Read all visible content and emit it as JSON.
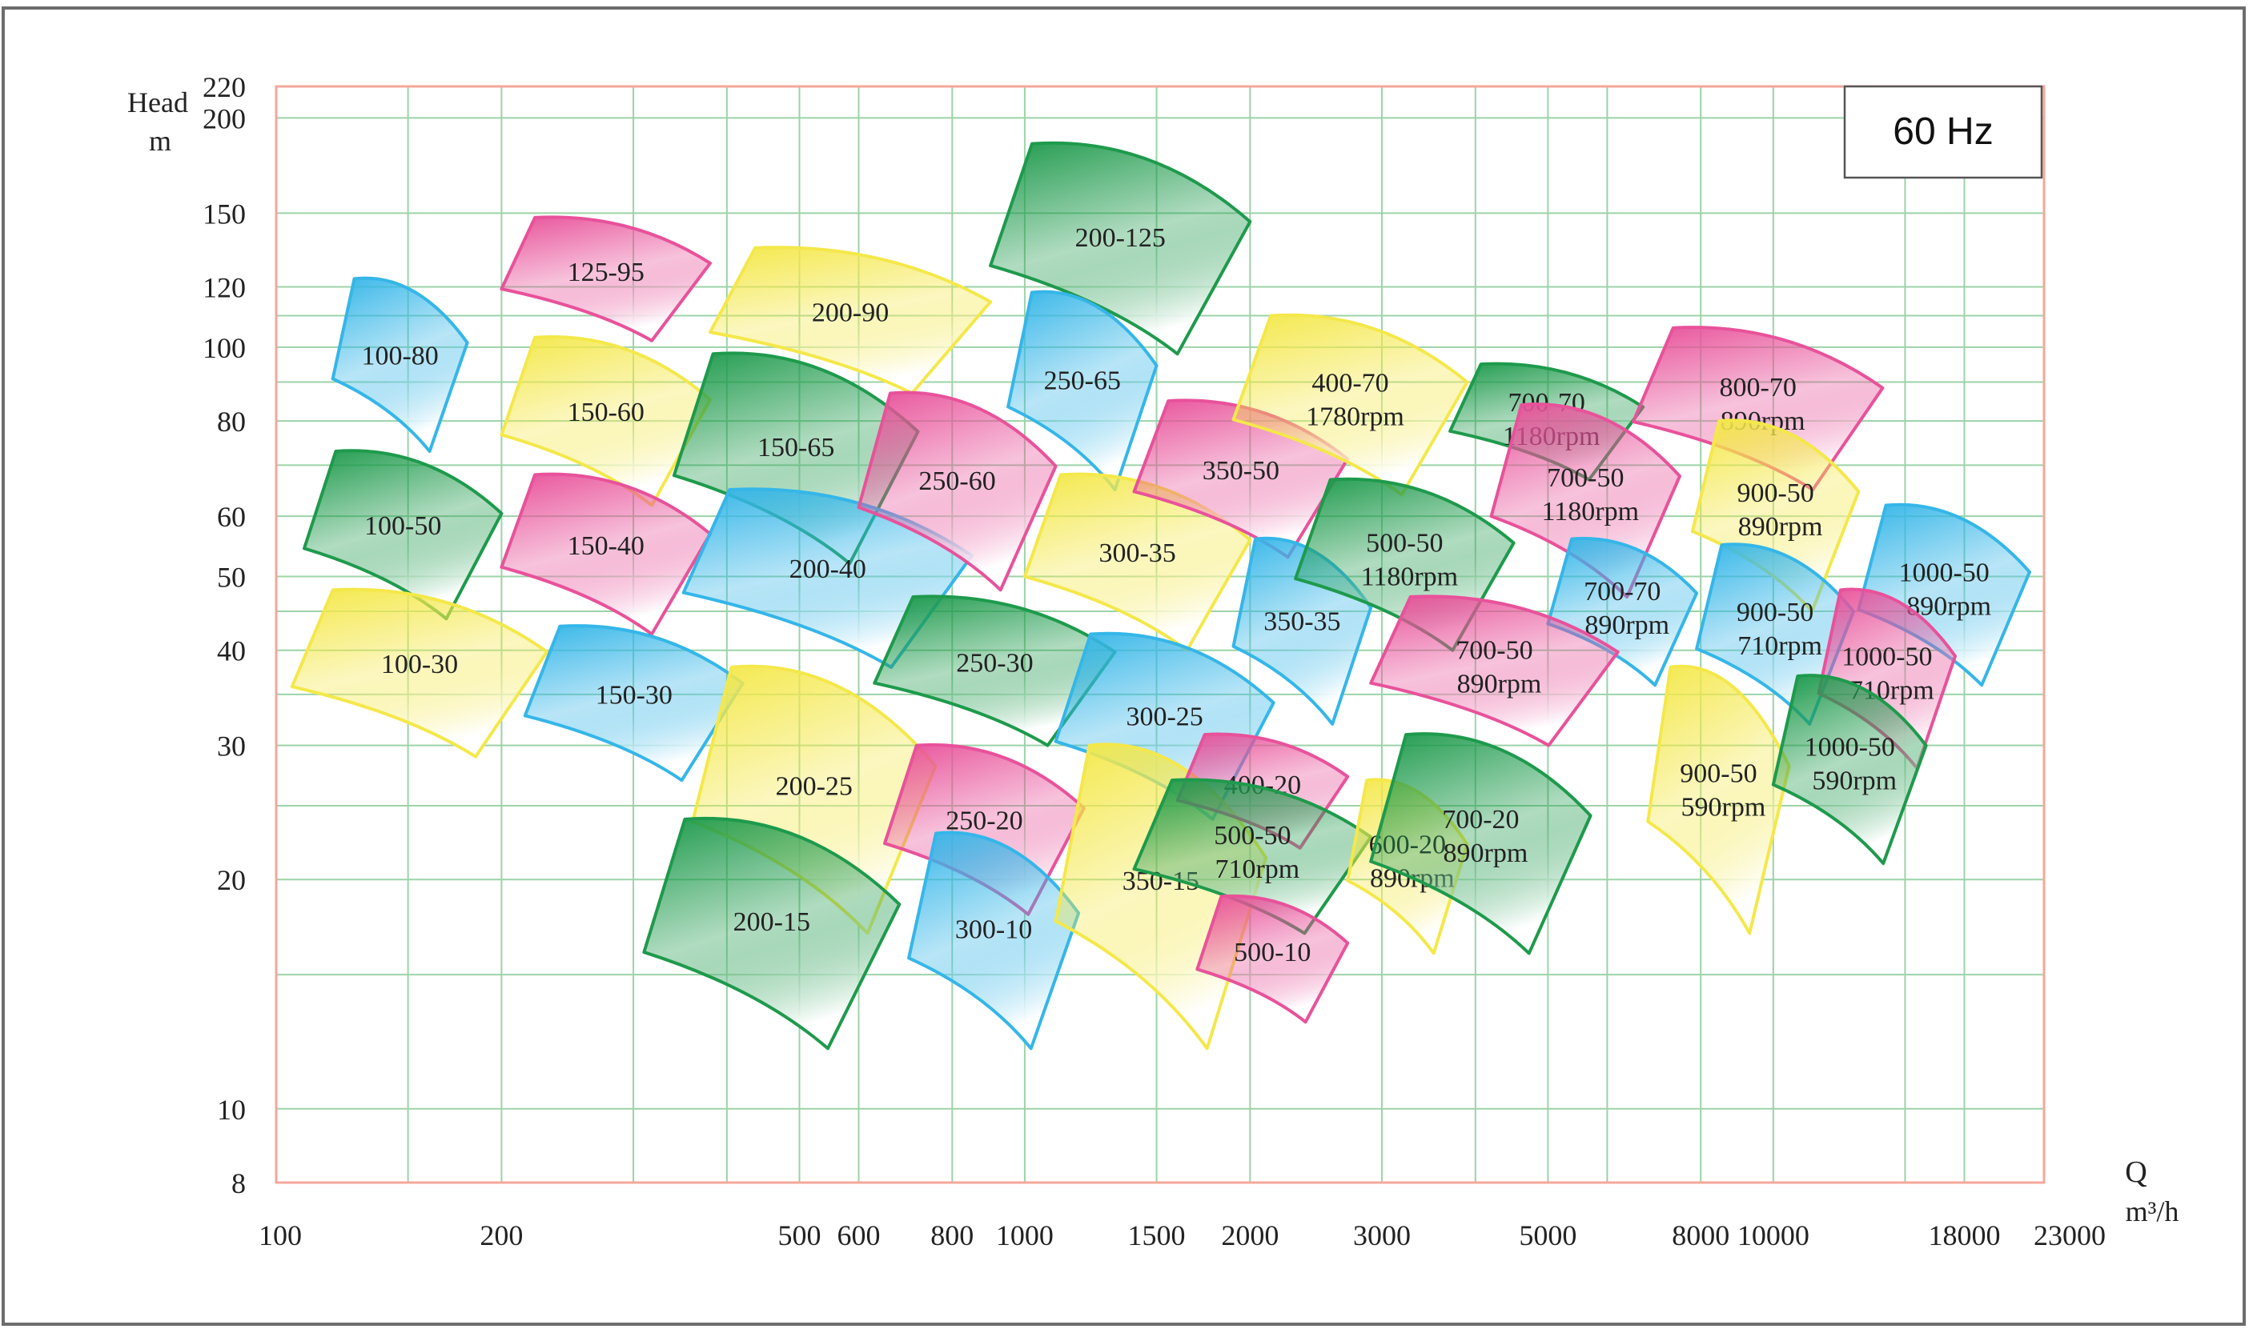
{
  "badge": "60 Hz",
  "chart_data": {
    "type": "area",
    "title": "",
    "xlabel": "Q",
    "xunit": "m³/h",
    "ylabel": "Head",
    "yunit": "m",
    "xscale": "log",
    "yscale": "log",
    "xlim": [
      100,
      23000
    ],
    "ylim": [
      8,
      220
    ],
    "grid": true,
    "legend": "none",
    "x_tick_labels": [
      "100",
      "200",
      "500",
      "600",
      "800",
      "1000",
      "1500",
      "2000",
      "3000",
      "5000",
      "8000",
      "10000",
      "18000",
      "23000"
    ],
    "y_tick_labels": [
      "220",
      "200",
      "150",
      "120",
      "100",
      "80",
      "60",
      "50",
      "40",
      "30",
      "20",
      "10",
      "8"
    ],
    "colors": {
      "blue": "#35b6e8",
      "pink": "#e8529a",
      "yellow": "#f4e84a",
      "green": "#1e9a4c",
      "grid": "#9cd3a8",
      "axis": "#f4a79a"
    },
    "series": [
      {
        "name": "100-80",
        "color": "blue",
        "q": [
          119,
          180
        ],
        "h": [
          73,
          123
        ]
      },
      {
        "name": "125-95",
        "color": "pink",
        "q": [
          200,
          380
        ],
        "h": [
          102,
          148
        ]
      },
      {
        "name": "100-50",
        "color": "green",
        "q": [
          109,
          200
        ],
        "h": [
          44,
          73
        ]
      },
      {
        "name": "100-30",
        "color": "yellow",
        "q": [
          105,
          230
        ],
        "h": [
          29,
          48
        ]
      },
      {
        "name": "150-60",
        "color": "yellow",
        "q": [
          200,
          380
        ],
        "h": [
          62,
          103
        ]
      },
      {
        "name": "150-40",
        "color": "pink",
        "q": [
          200,
          380
        ],
        "h": [
          42,
          68
        ]
      },
      {
        "name": "150-30",
        "color": "blue",
        "q": [
          215,
          420
        ],
        "h": [
          27,
          43
        ]
      },
      {
        "name": "200-90",
        "color": "yellow",
        "q": [
          380,
          900
        ],
        "h": [
          87,
          135
        ]
      },
      {
        "name": "150-65",
        "color": "green",
        "q": [
          340,
          720
        ],
        "h": [
          52,
          98
        ]
      },
      {
        "name": "200-40",
        "color": "blue",
        "q": [
          350,
          850
        ],
        "h": [
          38,
          65
        ]
      },
      {
        "name": "200-25",
        "color": "yellow",
        "q": [
          360,
          760
        ],
        "h": [
          17,
          38
        ]
      },
      {
        "name": "200-15",
        "color": "green",
        "q": [
          310,
          680
        ],
        "h": [
          12,
          24
        ]
      },
      {
        "name": "200-125",
        "color": "green",
        "q": [
          900,
          2000
        ],
        "h": [
          98,
          185
        ]
      },
      {
        "name": "250-65",
        "color": "blue",
        "q": [
          950,
          1500
        ],
        "h": [
          65,
          118
        ]
      },
      {
        "name": "250-60",
        "color": "pink",
        "q": [
          600,
          1100
        ],
        "h": [
          48,
          87
        ]
      },
      {
        "name": "250-30",
        "color": "green",
        "q": [
          630,
          1320
        ],
        "h": [
          30,
          47
        ]
      },
      {
        "name": "250-20",
        "color": "pink",
        "q": [
          650,
          1200
        ],
        "h": [
          18,
          30
        ]
      },
      {
        "name": "300-10",
        "color": "blue",
        "q": [
          700,
          1180
        ],
        "h": [
          12,
          23
        ]
      },
      {
        "name": "300-35",
        "color": "yellow",
        "q": [
          1000,
          2000
        ],
        "h": [
          40,
          68
        ]
      },
      {
        "name": "300-25",
        "color": "blue",
        "q": [
          1100,
          2150
        ],
        "h": [
          24,
          42
        ]
      },
      {
        "name": "350-50",
        "color": "pink",
        "q": [
          1400,
          2700
        ],
        "h": [
          53,
          85
        ]
      },
      {
        "name": "350-35",
        "color": "blue",
        "q": [
          1900,
          2900
        ],
        "h": [
          32,
          56
        ]
      },
      {
        "name": "350-15",
        "color": "yellow",
        "q": [
          1100,
          2100
        ],
        "h": [
          12,
          30
        ]
      },
      {
        "name": "400-70",
        "color": "yellow",
        "q": [
          1900,
          3900
        ],
        "h": [
          64,
          110
        ],
        "annotation": "1780rpm"
      },
      {
        "name": "400-20",
        "color": "pink",
        "q": [
          1600,
          2700
        ],
        "h": [
          22,
          31
        ]
      },
      {
        "name": "500-50",
        "color": "green",
        "q": [
          2300,
          4500
        ],
        "h": [
          40,
          67
        ],
        "annotation": "1180rpm"
      },
      {
        "name": "500-50",
        "color": "green",
        "q": [
          1400,
          2900
        ],
        "h": [
          17,
          27
        ],
        "annotation": "710rpm"
      },
      {
        "name": "500-10",
        "color": "pink",
        "q": [
          1700,
          2700
        ],
        "h": [
          13,
          19
        ]
      },
      {
        "name": "600-20",
        "color": "yellow",
        "q": [
          2700,
          3900
        ],
        "h": [
          16,
          27
        ],
        "annotation": "890rpm"
      },
      {
        "name": "700-70",
        "color": "green",
        "q": [
          3700,
          6700
        ],
        "h": [
          67,
          95
        ],
        "annotation": "1180rpm"
      },
      {
        "name": "700-50",
        "color": "pink",
        "q": [
          4200,
          7500
        ],
        "h": [
          47,
          84
        ],
        "annotation": "1180rpm"
      },
      {
        "name": "700-70",
        "color": "blue",
        "q": [
          5000,
          7900
        ],
        "h": [
          36,
          56
        ],
        "annotation": "890rpm"
      },
      {
        "name": "700-50",
        "color": "pink",
        "q": [
          2900,
          6200
        ],
        "h": [
          30,
          47
        ],
        "annotation": "890rpm"
      },
      {
        "name": "700-20",
        "color": "green",
        "q": [
          2900,
          5700
        ],
        "h": [
          16,
          31
        ],
        "annotation": "890rpm"
      },
      {
        "name": "800-70",
        "color": "pink",
        "q": [
          6500,
          14000
        ],
        "h": [
          65,
          106
        ],
        "annotation": "890rpm"
      },
      {
        "name": "900-50",
        "color": "yellow",
        "q": [
          7800,
          13000
        ],
        "h": [
          45,
          80
        ],
        "annotation": "890rpm"
      },
      {
        "name": "900-50",
        "color": "blue",
        "q": [
          7900,
          12800
        ],
        "h": [
          32,
          55
        ],
        "annotation": "710rpm"
      },
      {
        "name": "900-50",
        "color": "yellow",
        "q": [
          6800,
          10500
        ],
        "h": [
          17,
          38
        ],
        "annotation": "590rpm"
      },
      {
        "name": "1000-50",
        "color": "blue",
        "q": [
          13000,
          22000
        ],
        "h": [
          36,
          62
        ],
        "annotation": "890rpm"
      },
      {
        "name": "1000-50",
        "color": "pink",
        "q": [
          11500,
          17500
        ],
        "h": [
          28,
          48
        ],
        "annotation": "710rpm"
      },
      {
        "name": "1000-50",
        "color": "green",
        "q": [
          10000,
          16000
        ],
        "h": [
          21,
          37
        ],
        "annotation": "590rpm"
      }
    ]
  }
}
